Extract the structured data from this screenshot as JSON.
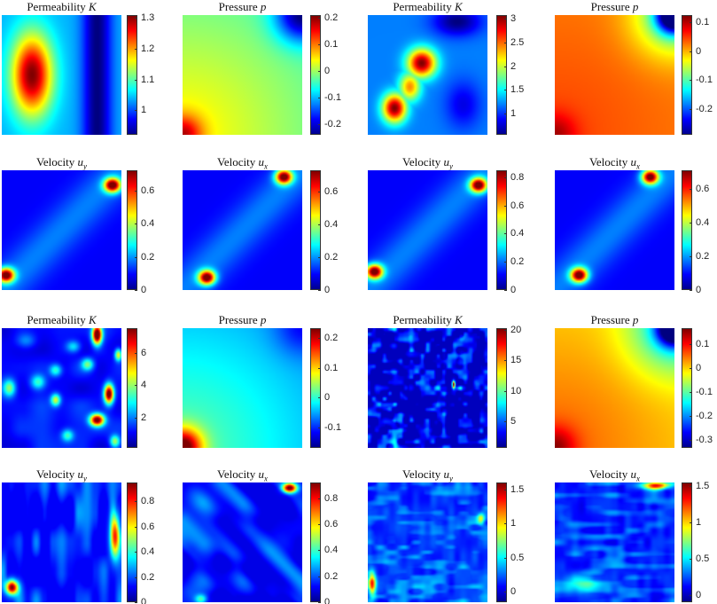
{
  "colormap": "jet",
  "chart_data": [
    {
      "type": "heatmap",
      "title": "Permeability",
      "symbol": "K",
      "subscript": "",
      "range": [
        0.92,
        1.31
      ],
      "ticks": [
        "1",
        "1.1",
        "1.2",
        "1.3"
      ],
      "tick_values": [
        1,
        1.1,
        1.2,
        1.3
      ]
    },
    {
      "type": "heatmap",
      "title": "Pressure",
      "symbol": "p",
      "subscript": "",
      "range": [
        -0.24,
        0.21
      ],
      "ticks": [
        "-0.2",
        "-0.1",
        "0",
        "0.1",
        "0.2"
      ],
      "tick_values": [
        -0.2,
        -0.1,
        0,
        0.1,
        0.2
      ]
    },
    {
      "type": "heatmap",
      "title": "Permeability",
      "symbol": "K",
      "subscript": "",
      "range": [
        0.55,
        3.08
      ],
      "ticks": [
        "1",
        "1.5",
        "2",
        "2.5",
        "3"
      ],
      "tick_values": [
        1,
        1.5,
        2,
        2.5,
        3
      ]
    },
    {
      "type": "heatmap",
      "title": "Pressure",
      "symbol": "p",
      "subscript": "",
      "range": [
        -0.29,
        0.125
      ],
      "ticks": [
        "-0.2",
        "-0.1",
        "0",
        "0.1"
      ],
      "tick_values": [
        -0.2,
        -0.1,
        0,
        0.1
      ]
    },
    {
      "type": "heatmap",
      "title": "Velocity",
      "symbol": "u",
      "subscript": "y",
      "range": [
        0,
        0.72
      ],
      "ticks": [
        "0",
        "0.2",
        "0.4",
        "0.6"
      ],
      "tick_values": [
        0,
        0.2,
        0.4,
        0.6
      ]
    },
    {
      "type": "heatmap",
      "title": "Velocity",
      "symbol": "u",
      "subscript": "x",
      "range": [
        0,
        0.73
      ],
      "ticks": [
        "0",
        "0.2",
        "0.4",
        "0.6"
      ],
      "tick_values": [
        0,
        0.2,
        0.4,
        0.6
      ]
    },
    {
      "type": "heatmap",
      "title": "Velocity",
      "symbol": "u",
      "subscript": "y",
      "range": [
        0,
        0.85
      ],
      "ticks": [
        "0",
        "0.2",
        "0.4",
        "0.6",
        "0.8"
      ],
      "tick_values": [
        0,
        0.2,
        0.4,
        0.6,
        0.8
      ]
    },
    {
      "type": "heatmap",
      "title": "Velocity",
      "symbol": "u",
      "subscript": "x",
      "range": [
        0,
        0.71
      ],
      "ticks": [
        "0",
        "0.2",
        "0.4",
        "0.6"
      ],
      "tick_values": [
        0,
        0.2,
        0.4,
        0.6
      ]
    },
    {
      "type": "heatmap",
      "title": "Permeability",
      "symbol": "K",
      "subscript": "",
      "range": [
        0.1,
        7.55
      ],
      "ticks": [
        "2",
        "4",
        "6"
      ],
      "tick_values": [
        2,
        4,
        6
      ]
    },
    {
      "type": "heatmap",
      "title": "Pressure",
      "symbol": "p",
      "subscript": "",
      "range": [
        -0.17,
        0.233
      ],
      "ticks": [
        "-0.1",
        "0",
        "0.1",
        "0.2"
      ],
      "tick_values": [
        -0.1,
        0,
        0.1,
        0.2
      ]
    },
    {
      "type": "heatmap",
      "title": "Permeability",
      "symbol": "K",
      "subscript": "",
      "range": [
        0.6,
        20.3
      ],
      "ticks": [
        "5",
        "10",
        "15",
        "20"
      ],
      "tick_values": [
        5,
        10,
        15,
        20
      ]
    },
    {
      "type": "heatmap",
      "title": "Pressure",
      "symbol": "p",
      "subscript": "",
      "range": [
        -0.335,
        0.165
      ],
      "ticks": [
        "-0.3",
        "-0.2",
        "-0.1",
        "0",
        "0.1"
      ],
      "tick_values": [
        -0.3,
        -0.2,
        -0.1,
        0,
        0.1
      ]
    },
    {
      "type": "heatmap",
      "title": "Velocity",
      "symbol": "u",
      "subscript": "y",
      "range": [
        0,
        0.95
      ],
      "ticks": [
        "0",
        "0.2",
        "0.4",
        "0.6",
        "0.8"
      ],
      "tick_values": [
        0,
        0.2,
        0.4,
        0.6,
        0.8
      ]
    },
    {
      "type": "heatmap",
      "title": "Velocity",
      "symbol": "u",
      "subscript": "x",
      "range": [
        0,
        0.92
      ],
      "ticks": [
        "0",
        "0.2",
        "0.4",
        "0.6",
        "0.8"
      ],
      "tick_values": [
        0,
        0.2,
        0.4,
        0.6,
        0.8
      ]
    },
    {
      "type": "heatmap",
      "title": "Velocity",
      "symbol": "u",
      "subscript": "y",
      "range": [
        -0.15,
        1.6
      ],
      "ticks": [
        "0",
        "0.5",
        "1",
        "1.5"
      ],
      "tick_values": [
        0,
        0.5,
        1,
        1.5
      ]
    },
    {
      "type": "heatmap",
      "title": "Velocity",
      "symbol": "u",
      "subscript": "x",
      "range": [
        -0.1,
        1.55
      ],
      "ticks": [
        "0",
        "0.5",
        "1",
        "1.5"
      ],
      "tick_values": [
        0,
        0.5,
        1,
        1.5
      ]
    }
  ]
}
